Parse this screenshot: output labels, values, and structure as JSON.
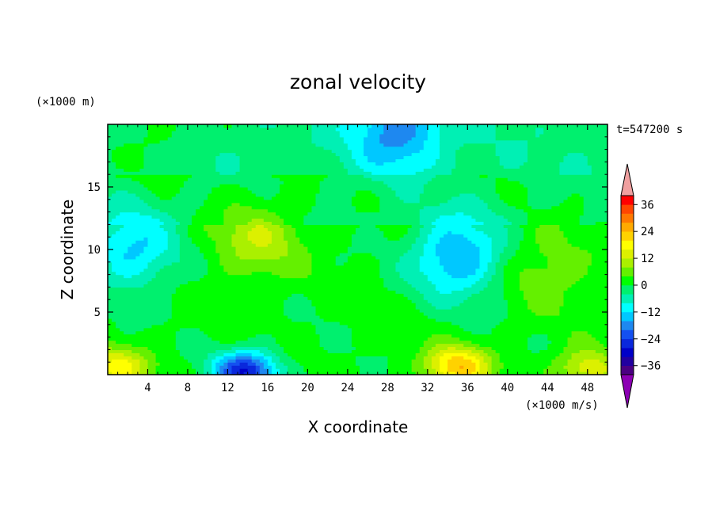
{
  "chart_data": {
    "type": "heatmap",
    "title": "zonal velocity",
    "xlabel": "X coordinate",
    "ylabel": "Z coordinate",
    "x_unit_label": "(×1000 m/s)",
    "y_unit_label": "(×1000 m)",
    "time_label": "t=547200 s",
    "xlim": [
      0,
      50
    ],
    "ylim": [
      0,
      20
    ],
    "x_ticks": [
      4,
      8,
      12,
      16,
      20,
      24,
      28,
      32,
      36,
      40,
      44,
      48
    ],
    "x_tick_labels": [
      "4",
      "8",
      "12",
      "16",
      "20",
      "24",
      "28",
      "32",
      "36",
      "40",
      "44",
      "48"
    ],
    "y_ticks": [
      5,
      10,
      15
    ],
    "y_tick_labels": [
      "5",
      "10",
      "15"
    ],
    "colorbar": {
      "levels": [
        -40,
        -36,
        -32,
        -28,
        -24,
        -20,
        -16,
        -12,
        -8,
        -4,
        0,
        4,
        8,
        12,
        16,
        20,
        24,
        28,
        32,
        36,
        40
      ],
      "tick_values": [
        -36,
        -24,
        -12,
        0,
        12,
        24,
        36
      ],
      "tick_labels": [
        "−36",
        "−24",
        "−12",
        "0",
        "12",
        "24",
        "36"
      ],
      "colors": [
        "#4b0082",
        "#2200a0",
        "#0000c8",
        "#0a28dc",
        "#1450f0",
        "#1e88f0",
        "#00c8ff",
        "#00ffff",
        "#00f0b4",
        "#00f06e",
        "#00ff00",
        "#64f000",
        "#aaf000",
        "#dcf000",
        "#ffff00",
        "#ffd200",
        "#ffaa00",
        "#ff7800",
        "#ff4600",
        "#ff0000"
      ],
      "under_color": "#8c00b4",
      "over_color": "#f0a0a0"
    },
    "features": [
      {
        "x": 1,
        "z": 0.6,
        "value": 16,
        "label": "surface jet, lower left"
      },
      {
        "x": 13.8,
        "z": 0.3,
        "value": -28,
        "label": "surface core"
      },
      {
        "x": 35,
        "z": 0.7,
        "value": 22,
        "label": "surface jet"
      },
      {
        "x": 48,
        "z": 0.5,
        "value": 14,
        "label": "surface jet, lower right"
      },
      {
        "x": 15,
        "z": 11,
        "value": 10,
        "label": "mid-level maximum"
      },
      {
        "x": 35,
        "z": 9.5,
        "value": -18,
        "label": "mid-level minimum"
      },
      {
        "x": 2.5,
        "z": 10,
        "value": -14,
        "label": "left-edge minimum"
      },
      {
        "x": 44,
        "z": 8.5,
        "value": 6,
        "label": "right maximum"
      },
      {
        "x": 29,
        "z": 19.5,
        "value": -16,
        "label": "top minimum"
      },
      {
        "x": 5,
        "z": 19,
        "value": 4,
        "label": "upper-left maximum"
      }
    ]
  }
}
